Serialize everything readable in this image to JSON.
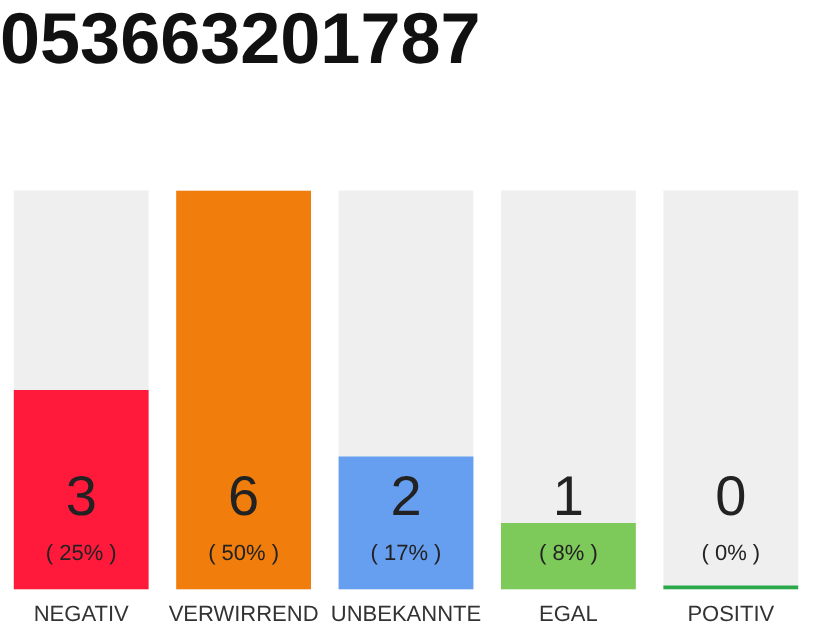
{
  "chart_data": {
    "type": "bar",
    "title": "053663201787",
    "categories": [
      "NEGATIV",
      "VERWIRREND",
      "UNBEKANNTE",
      "EGAL",
      "POSITIV"
    ],
    "values": [
      3,
      6,
      2,
      1,
      0
    ],
    "colors": [
      "#ff1a3c",
      "#f07d0c",
      "#679ff0",
      "#7dc95a",
      "#2aa84a"
    ],
    "value_labels": [
      "3",
      "6",
      "2",
      "1",
      "0"
    ],
    "annotations": [
      "( 25% )",
      "( 50% )",
      "( 17% )",
      "( 8% )",
      "( 0% )"
    ],
    "grid": false,
    "legend": false
  }
}
